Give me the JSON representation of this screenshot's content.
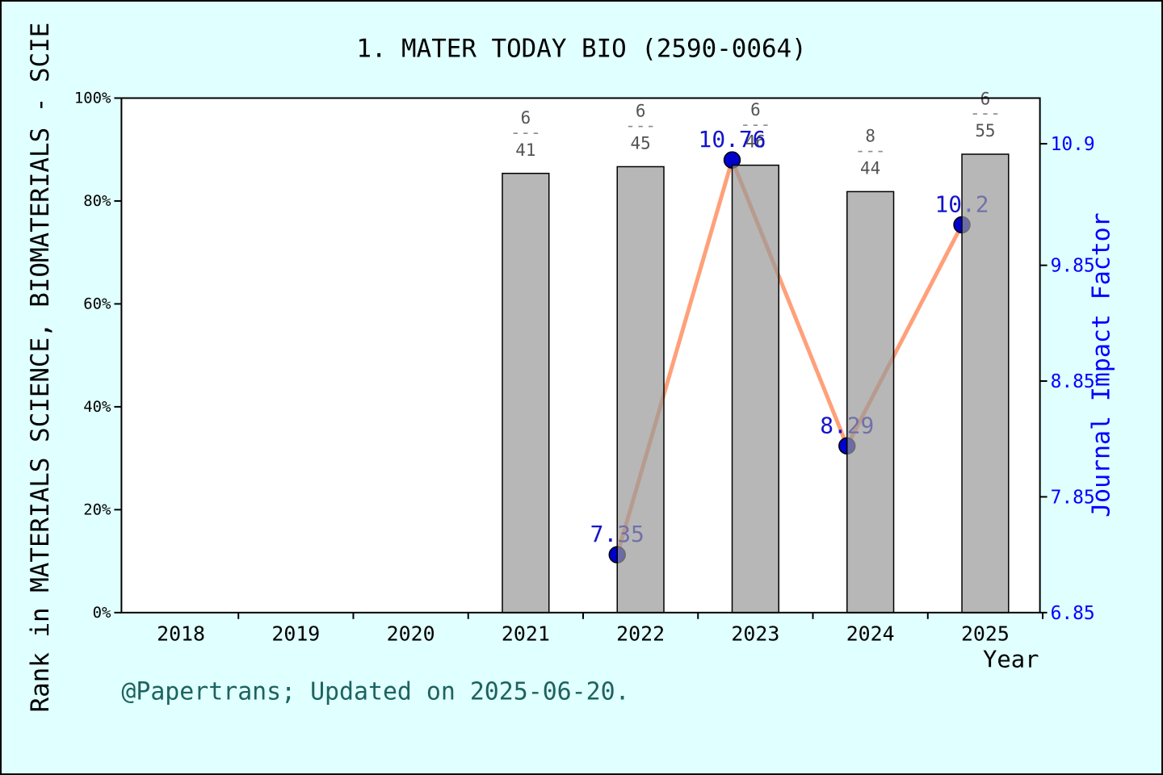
{
  "window": {
    "background": "#E0FFFF"
  },
  "footer": {
    "text": "@Papertrans; Updated on 2025-06-20."
  },
  "chart_data": {
    "type": "combo-bar-line",
    "title": "1. MATER TODAY BIO (2590-0064)",
    "xlabel": "Year",
    "x_categories": [
      2018,
      2019,
      2020,
      2021,
      2022,
      2023,
      2024,
      2025
    ],
    "left_axis": {
      "label": "Rank in MATERIALS SCIENCE, BIOMATERIALS - SCIE",
      "range": [
        0,
        100
      ],
      "ticks": [
        {
          "label": "0%",
          "value": 0
        },
        {
          "label": "20%",
          "value": 20
        },
        {
          "label": "40%",
          "value": 40
        },
        {
          "label": "60%",
          "value": 60
        },
        {
          "label": "80%",
          "value": 80
        },
        {
          "label": "100%",
          "value": 100
        }
      ]
    },
    "right_axis": {
      "label": "Journal Impact Factor",
      "ticks": [
        {
          "label": "6.85",
          "value": 6.85
        },
        {
          "label": "7.85",
          "value": 7.85
        },
        {
          "label": "8.85",
          "value": 8.85
        },
        {
          "label": "9.85",
          "value": 9.85
        },
        {
          "label": "10.9",
          "value": 10.9
        }
      ]
    },
    "bar_series": {
      "name": "Rank in category (bar height = 1 - rank/total)",
      "points": [
        {
          "year": 2021,
          "rank": 6,
          "total": 41
        },
        {
          "year": 2022,
          "rank": 6,
          "total": 45
        },
        {
          "year": 2023,
          "rank": 6,
          "total": 46
        },
        {
          "year": 2024,
          "rank": 8,
          "total": 44
        },
        {
          "year": 2025,
          "rank": 6,
          "total": 55
        }
      ]
    },
    "line_series": {
      "name": "Journal Impact Factor",
      "points": [
        {
          "year": 2022,
          "value": 7.35,
          "label": "7.35"
        },
        {
          "year": 2023,
          "value": 10.76,
          "label": "10.76"
        },
        {
          "year": 2024,
          "value": 8.29,
          "label": "8.29"
        },
        {
          "year": 2025,
          "value": 10.2,
          "label": "10.2"
        }
      ]
    },
    "styles": {
      "background": "#E0FFFF",
      "plot_background": "#FFFFFF",
      "bar_fill": "#999999",
      "bar_edge": "#000000",
      "line_color": "#FFA07A",
      "marker_color": "#0000CC",
      "value_label_color": "#1414CC",
      "right_axis_color": "#0000FF",
      "fraction_number_color": "#545454",
      "fraction_dash_color": "#909090",
      "footer_color": "#1C6360",
      "axis_color": "#000000"
    },
    "fraction_dash_glyph": "---"
  }
}
